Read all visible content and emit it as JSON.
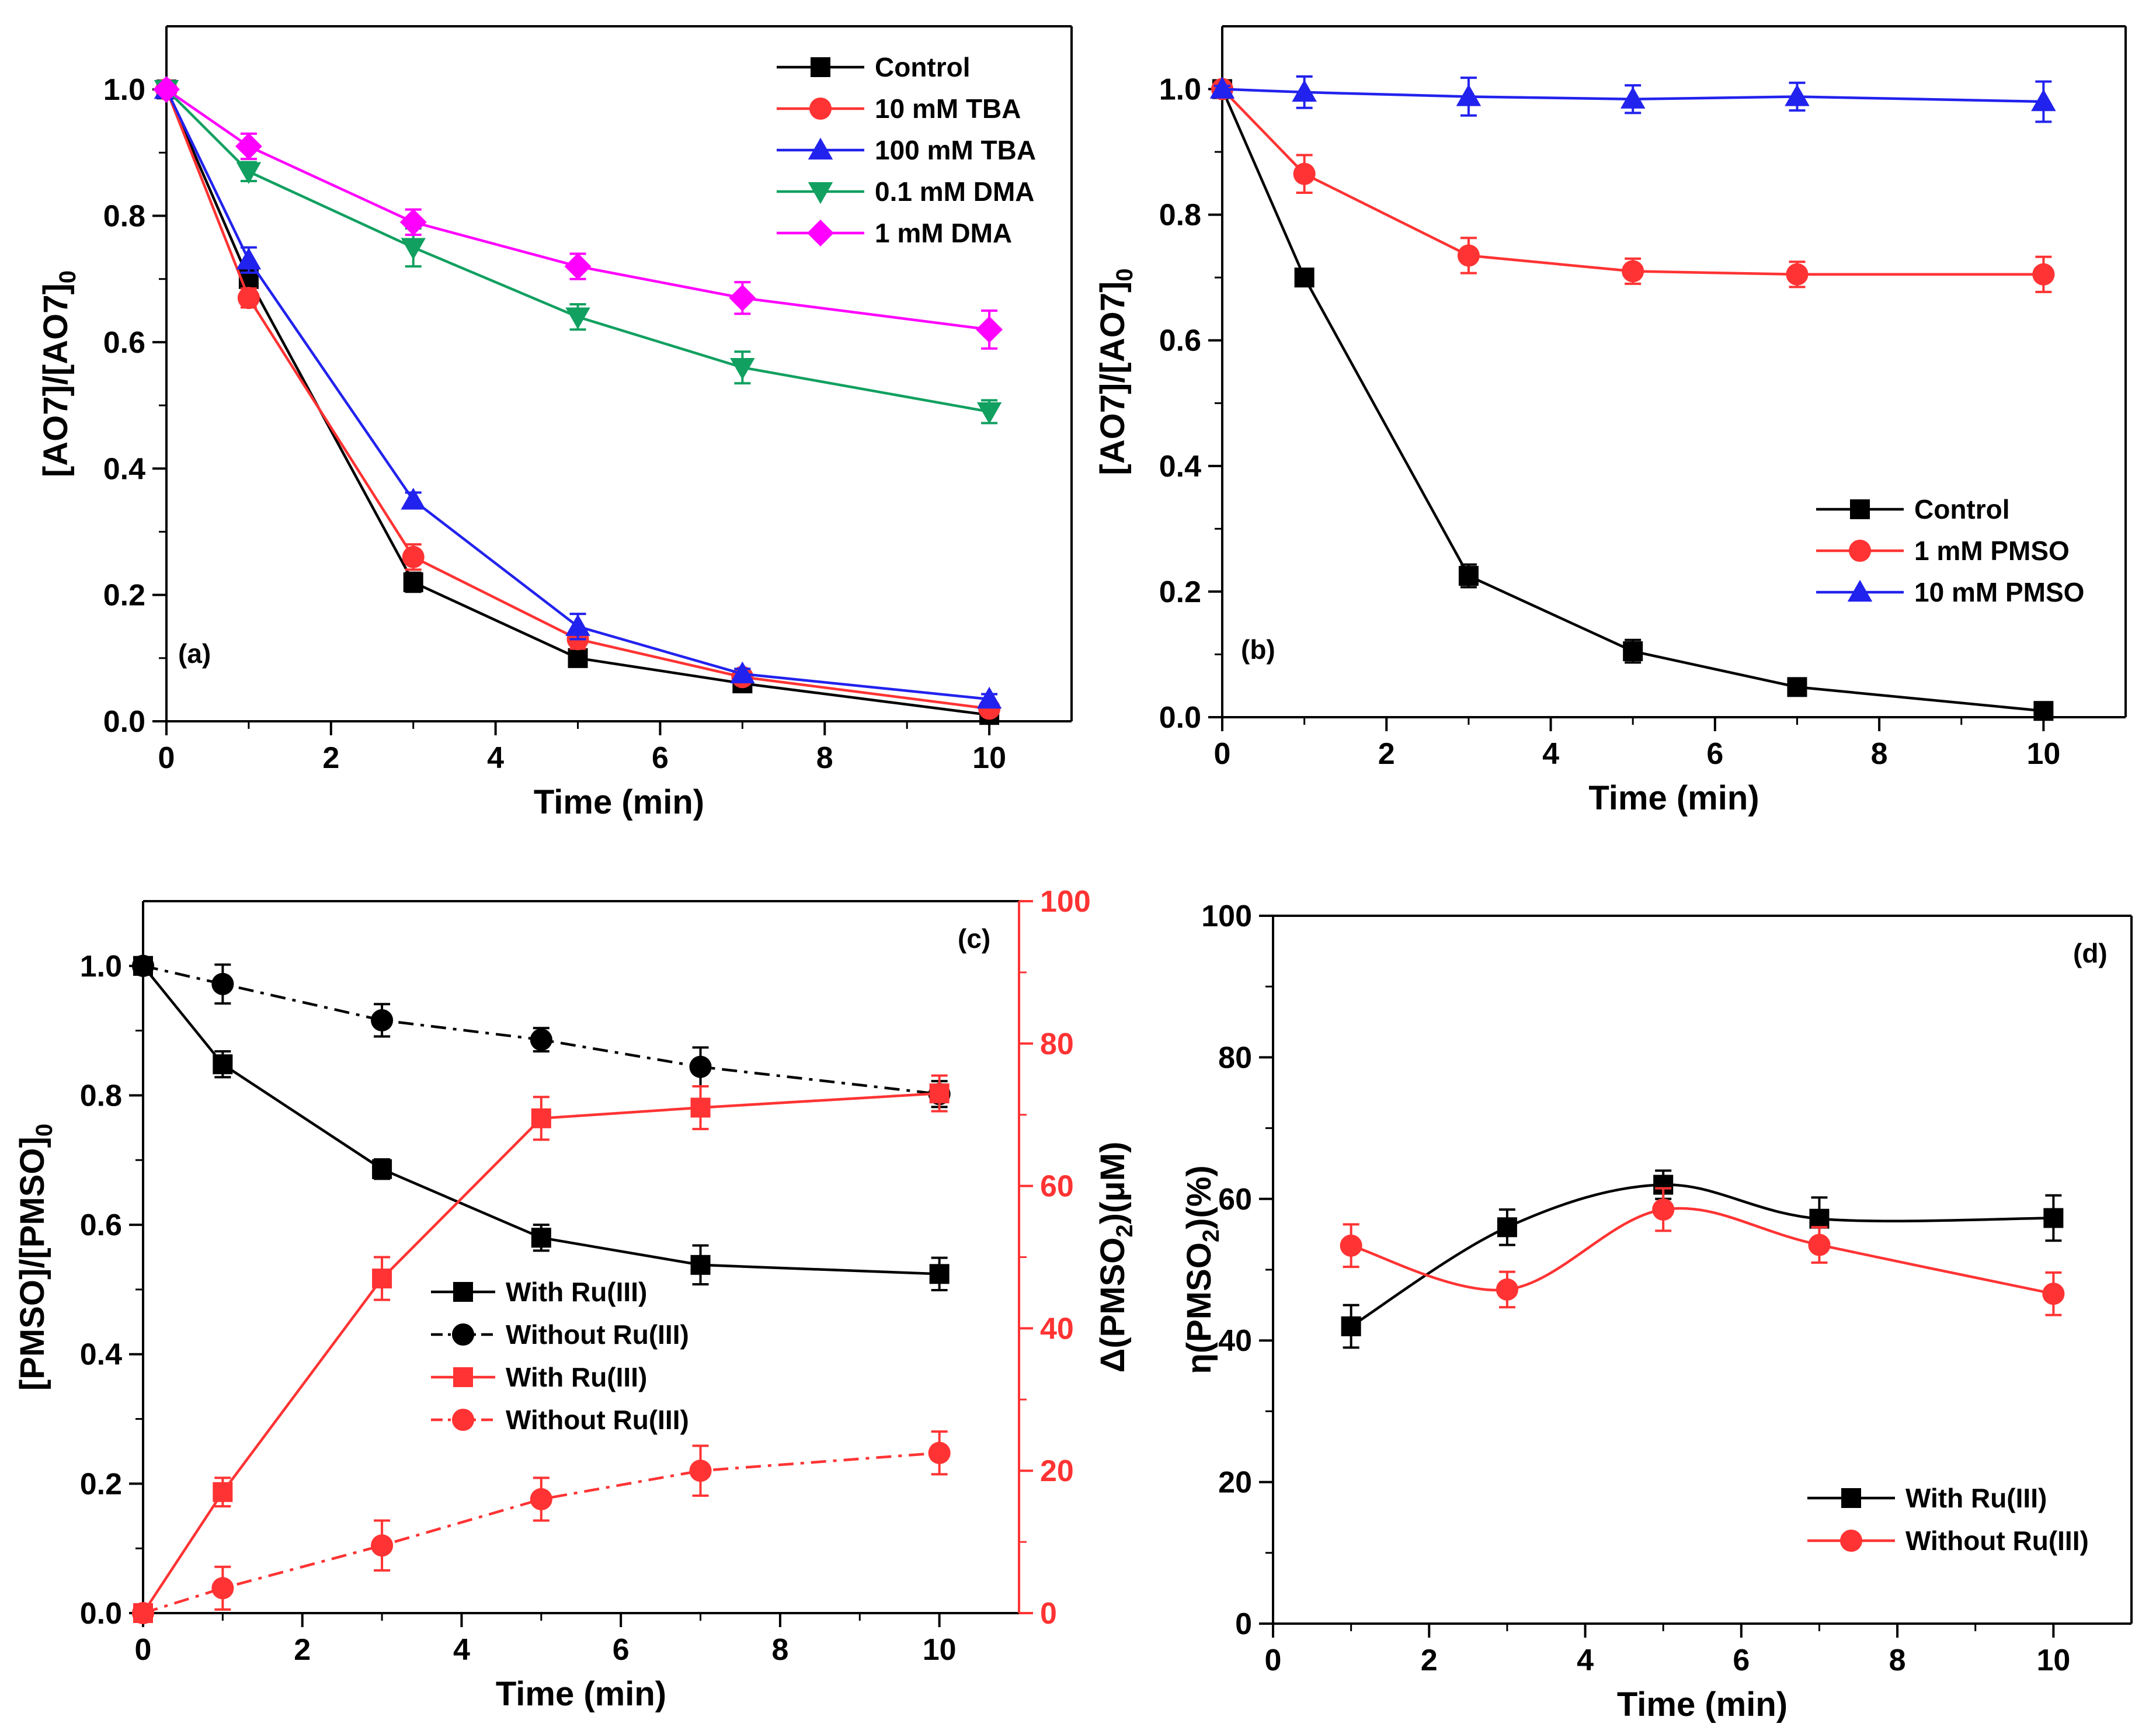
{
  "chart_data": [
    {
      "panel": "(a)",
      "type": "line",
      "xlabel": "Time (min)",
      "ylabel": "[AO7]/[AO7]",
      "ylabel_sub": "0",
      "xlim": [
        0,
        11
      ],
      "ylim": [
        0,
        1.1
      ],
      "xticks": [
        0,
        2,
        4,
        6,
        8,
        10
      ],
      "yticks": [
        0.0,
        0.2,
        0.4,
        0.6,
        0.8,
        1.0
      ],
      "x": [
        0,
        1,
        3,
        5,
        7,
        10
      ],
      "legend_position": "top-right",
      "series": [
        {
          "name": "Control",
          "color": "#000000",
          "marker": "square",
          "values": [
            1.0,
            0.7,
            0.22,
            0.1,
            0.06,
            0.01
          ],
          "err": [
            0.005,
            0.012,
            0.015,
            0.012,
            0.008,
            0.006
          ]
        },
        {
          "name": "10 mM TBA",
          "color": "#ff3333",
          "marker": "circle",
          "values": [
            1.0,
            0.67,
            0.26,
            0.13,
            0.07,
            0.02
          ],
          "err": [
            0.005,
            0.015,
            0.02,
            0.015,
            0.008,
            0.006
          ]
        },
        {
          "name": "100 mM TBA",
          "color": "#2222ee",
          "marker": "triangle-up",
          "values": [
            1.0,
            0.73,
            0.35,
            0.15,
            0.075,
            0.035
          ],
          "err": [
            0.005,
            0.02,
            0.012,
            0.02,
            0.008,
            0.008
          ]
        },
        {
          "name": "0.1 mM DMA",
          "color": "#11a060",
          "marker": "triangle-down",
          "values": [
            1.0,
            0.87,
            0.75,
            0.64,
            0.56,
            0.49
          ],
          "err": [
            0.005,
            0.015,
            0.03,
            0.02,
            0.025,
            0.018
          ]
        },
        {
          "name": "1 mM DMA",
          "color": "#ff00ff",
          "marker": "diamond",
          "values": [
            1.0,
            0.91,
            0.79,
            0.72,
            0.67,
            0.62
          ],
          "err": [
            0.005,
            0.02,
            0.02,
            0.02,
            0.025,
            0.03
          ]
        }
      ]
    },
    {
      "panel": "(b)",
      "type": "line",
      "xlabel": "Time (min)",
      "ylabel": "[AO7]/[AO7]",
      "ylabel_sub": "0",
      "xlim": [
        0,
        11
      ],
      "ylim": [
        0,
        1.1
      ],
      "xticks": [
        0,
        2,
        4,
        6,
        8,
        10
      ],
      "yticks": [
        0.0,
        0.2,
        0.4,
        0.6,
        0.8,
        1.0
      ],
      "x": [
        0,
        1,
        3,
        5,
        7,
        10
      ],
      "legend_position": "bottom-right",
      "series": [
        {
          "name": "Control",
          "color": "#000000",
          "marker": "square",
          "values": [
            1.0,
            0.7,
            0.225,
            0.105,
            0.048,
            0.01
          ],
          "err": [
            0.005,
            0.012,
            0.018,
            0.018,
            0.01,
            0.006
          ]
        },
        {
          "name": "1 mM PMSO",
          "color": "#ff3333",
          "marker": "circle",
          "values": [
            1.0,
            0.865,
            0.735,
            0.71,
            0.705,
            0.705
          ],
          "err": [
            0.005,
            0.03,
            0.028,
            0.02,
            0.02,
            0.028
          ]
        },
        {
          "name": "10 mM PMSO",
          "color": "#2222ee",
          "marker": "triangle-up",
          "values": [
            1.0,
            0.995,
            0.988,
            0.984,
            0.988,
            0.98
          ],
          "err": [
            0.005,
            0.025,
            0.03,
            0.022,
            0.022,
            0.032
          ]
        }
      ]
    },
    {
      "panel": "(c)",
      "type": "line",
      "xlabel": "Time (min)",
      "ylabel": "[PMSO]/[PMSO]",
      "ylabel_sub": "0",
      "y2label_pre": "Δ(PMSO",
      "y2label_sub": "2",
      "y2label_post": ")(μM)",
      "y2_color": "#ff3333",
      "xlim": [
        0,
        11
      ],
      "ylim": [
        0,
        1.1
      ],
      "y2lim": [
        0,
        100
      ],
      "xticks": [
        0,
        2,
        4,
        6,
        8,
        10
      ],
      "yticks": [
        0.0,
        0.2,
        0.4,
        0.6,
        0.8,
        1.0
      ],
      "y2ticks": [
        0,
        20,
        40,
        60,
        80,
        100
      ],
      "x": [
        0,
        1,
        3,
        5,
        7,
        10
      ],
      "legend_position": "center-left",
      "series": [
        {
          "name": " With Ru(III)",
          "axis": "left",
          "color": "#000000",
          "marker": "square",
          "dash": "solid",
          "values": [
            1.0,
            0.848,
            0.686,
            0.58,
            0.538,
            0.524
          ],
          "err": [
            0.005,
            0.02,
            0.015,
            0.02,
            0.03,
            0.025
          ]
        },
        {
          "name": "Without Ru(III)",
          "axis": "left",
          "color": "#000000",
          "marker": "circle",
          "dash": "dashdot",
          "values": [
            1.0,
            0.972,
            0.916,
            0.886,
            0.844,
            0.802
          ],
          "err": [
            0.005,
            0.03,
            0.025,
            0.018,
            0.03,
            0.02
          ]
        },
        {
          "name": "With Ru(III)",
          "axis": "right",
          "color": "#ff3333",
          "marker": "square",
          "dash": "solid",
          "values": [
            0,
            17,
            47,
            69.5,
            71,
            73
          ],
          "err": [
            0.4,
            2,
            3,
            3,
            3,
            2.5
          ]
        },
        {
          "name": "Without Ru(III)",
          "axis": "right",
          "color": "#ff3333",
          "marker": "circle",
          "dash": "dashdot",
          "values": [
            0,
            3.5,
            9.5,
            16,
            20,
            22.5
          ],
          "err": [
            0.4,
            3,
            3.5,
            3,
            3.5,
            3
          ]
        }
      ]
    },
    {
      "panel": "(d)",
      "type": "line",
      "xlabel": "Time (min)",
      "ylabel_pre": "η(PMSO",
      "ylabel_sub": "2",
      "ylabel_post": ")(%)",
      "xlim": [
        0,
        11
      ],
      "ylim": [
        0,
        100
      ],
      "xticks": [
        0,
        2,
        4,
        6,
        8,
        10
      ],
      "yticks": [
        0,
        20,
        40,
        60,
        80,
        100
      ],
      "x": [
        1,
        3,
        5,
        7,
        10
      ],
      "legend_position": "bottom-right",
      "series": [
        {
          "name": "With Ru(III)",
          "color": "#000000",
          "marker": "square",
          "values": [
            42,
            56,
            62,
            57.2,
            57.3
          ],
          "err": [
            3,
            2.5,
            2,
            3,
            3.2
          ]
        },
        {
          "name": "Without Ru(III)",
          "color": "#ff3333",
          "marker": "circle",
          "values": [
            53.4,
            47.2,
            58.5,
            53.5,
            46.6
          ],
          "err": [
            3,
            2.5,
            3,
            2.5,
            3
          ]
        }
      ]
    }
  ]
}
